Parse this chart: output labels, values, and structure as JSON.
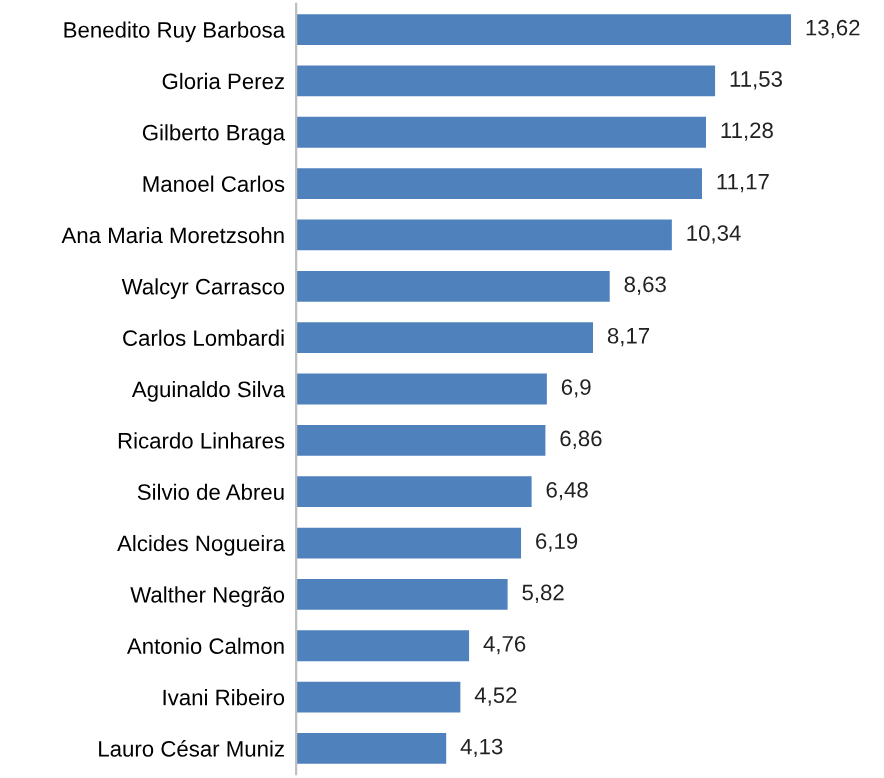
{
  "chart_data": {
    "type": "bar",
    "orientation": "horizontal",
    "categories": [
      "Benedito Ruy Barbosa",
      "Gloria Perez",
      "Gilberto Braga",
      "Manoel Carlos",
      "Ana Maria Moretzsohn",
      "Walcyr Carrasco",
      "Carlos Lombardi",
      "Aguinaldo Silva",
      "Ricardo Linhares",
      "Silvio de Abreu",
      "Alcides Nogueira",
      "Walther Negrão",
      "Antonio Calmon",
      "Ivani Ribeiro",
      "Lauro César Muniz"
    ],
    "values": [
      13.62,
      11.53,
      11.28,
      11.17,
      10.34,
      8.63,
      8.17,
      6.9,
      6.86,
      6.48,
      6.19,
      5.82,
      4.76,
      4.52,
      4.13
    ],
    "value_labels": [
      "13,62",
      "11,53",
      "11,28",
      "11,17",
      "10,34",
      "8,63",
      "8,17",
      "6,9",
      "6,86",
      "6,48",
      "6,19",
      "5,82",
      "4,76",
      "4,52",
      "4,13"
    ],
    "color": "#4f81bd",
    "grid": false,
    "legend": false
  }
}
